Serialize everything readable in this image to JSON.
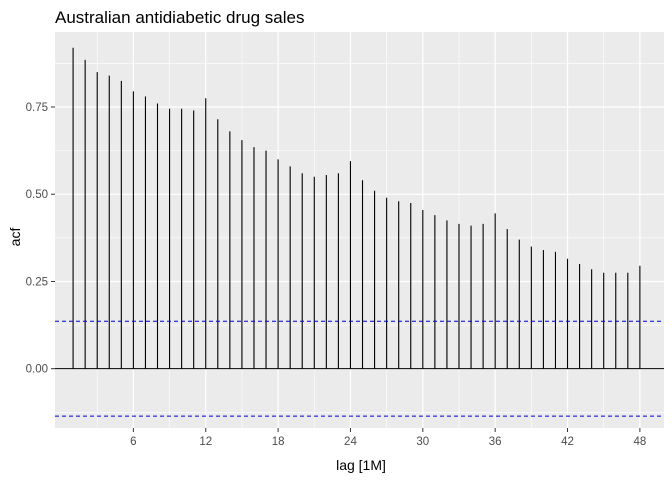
{
  "chart_data": {
    "type": "bar",
    "title": "Australian antidiabetic drug sales",
    "xlabel": "lag [1M]",
    "ylabel": "acf",
    "xlim": [
      -0.5,
      50.0
    ],
    "ylim": [
      -0.17,
      0.965
    ],
    "x_ticks": [
      6,
      12,
      18,
      24,
      30,
      36,
      42,
      48
    ],
    "y_ticks": [
      0.0,
      0.25,
      0.5,
      0.75
    ],
    "x_tick_labels": [
      "6",
      "12",
      "18",
      "24",
      "30",
      "36",
      "42",
      "48"
    ],
    "y_tick_labels": [
      "0.00",
      "0.25",
      "0.50",
      "0.75"
    ],
    "grid": true,
    "lag": [
      1,
      2,
      3,
      4,
      5,
      6,
      7,
      8,
      9,
      10,
      11,
      12,
      13,
      14,
      15,
      16,
      17,
      18,
      19,
      20,
      21,
      22,
      23,
      24,
      25,
      26,
      27,
      28,
      29,
      30,
      31,
      32,
      33,
      34,
      35,
      36,
      37,
      38,
      39,
      40,
      41,
      42,
      43,
      44,
      45,
      46,
      47,
      48
    ],
    "acf": [
      0.92,
      0.885,
      0.85,
      0.84,
      0.825,
      0.795,
      0.78,
      0.76,
      0.745,
      0.745,
      0.74,
      0.775,
      0.715,
      0.68,
      0.655,
      0.635,
      0.625,
      0.6,
      0.58,
      0.56,
      0.55,
      0.555,
      0.56,
      0.595,
      0.54,
      0.51,
      0.49,
      0.48,
      0.475,
      0.455,
      0.44,
      0.425,
      0.415,
      0.41,
      0.415,
      0.445,
      0.4,
      0.37,
      0.35,
      0.34,
      0.335,
      0.315,
      0.3,
      0.285,
      0.275,
      0.275,
      0.275,
      0.295
    ],
    "confidence_bound": 0.136,
    "colors": {
      "panel": "#ebebeb",
      "grid_major": "#ffffff",
      "bars": "#000000",
      "zero_line": "#000000",
      "bound_line": "#0000cc"
    }
  }
}
